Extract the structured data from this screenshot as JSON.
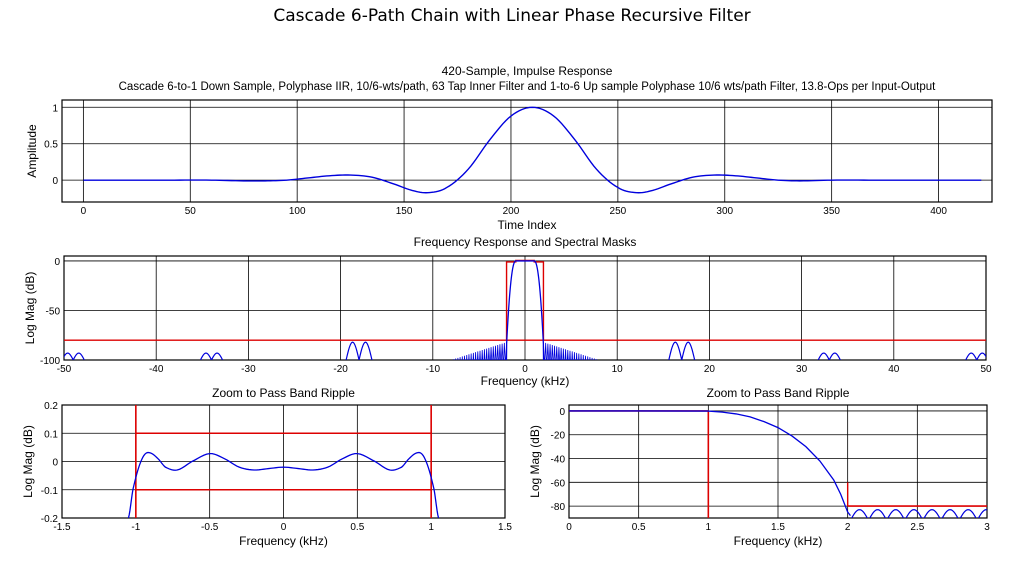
{
  "page": {
    "title": "Cascade 6-Path Chain with Linear Phase Recursive Filter"
  },
  "colors": {
    "curve": "#0000dd",
    "mask": "#dd0000",
    "grid": "#000000"
  },
  "chart_data": [
    {
      "id": "impulse",
      "type": "line",
      "title": "420-Sample, Impulse Response",
      "subtitle": "Cascade 6-to-1 Down Sample, Polyphase IIR, 10/6-wts/path, 63 Tap Inner Filter and 1-to-6 Up sample Polyphase 10/6 wts/path Filter, 13.8-Ops per Input-Output",
      "xlabel": "Time Index",
      "ylabel": "Amplitude",
      "xlim": [
        -10,
        425
      ],
      "ylim": [
        -0.3,
        1.1
      ],
      "xticks": [
        0,
        50,
        100,
        150,
        200,
        250,
        300,
        350,
        400
      ],
      "yticks": [
        0,
        0.5,
        1
      ],
      "grid": true,
      "series": [
        {
          "name": "impulse response",
          "x": [
            0,
            40,
            60,
            75,
            85,
            95,
            105,
            115,
            125,
            135,
            145,
            155,
            162,
            170,
            180,
            190,
            200,
            210,
            220,
            230,
            240,
            250,
            258,
            265,
            275,
            285,
            295,
            305,
            315,
            325,
            335,
            350,
            370,
            390,
            420
          ],
          "y": [
            0,
            0,
            0,
            -0.01,
            -0.01,
            0,
            0.03,
            0.06,
            0.07,
            0.04,
            -0.05,
            -0.15,
            -0.17,
            -0.1,
            0.15,
            0.55,
            0.88,
            1.0,
            0.88,
            0.55,
            0.15,
            -0.1,
            -0.17,
            -0.15,
            -0.05,
            0.04,
            0.07,
            0.06,
            0.03,
            0,
            -0.01,
            0,
            0,
            0,
            0
          ]
        }
      ]
    },
    {
      "id": "freq",
      "type": "line",
      "title": "Frequency Response and Spectral Masks",
      "xlabel": "Frequency (kHz)",
      "ylabel": "Log Mag (dB)",
      "xlim": [
        -50,
        50
      ],
      "ylim": [
        -100,
        5
      ],
      "xticks": [
        -50,
        -40,
        -30,
        -20,
        -10,
        0,
        10,
        20,
        30,
        40,
        50
      ],
      "yticks": [
        -100,
        -50,
        0
      ],
      "grid": true,
      "mask": {
        "passband_edge_khz": 1,
        "stopband_edge_khz": 2,
        "stopband_db": -80
      },
      "sidelobe_clusters_khz": [
        -49,
        -34,
        -18,
        17,
        33,
        49
      ]
    },
    {
      "id": "zoom_pass",
      "type": "line",
      "title": "Zoom to Pass Band Ripple",
      "xlabel": "Frequency (kHz)",
      "ylabel": "Log Mag (dB)",
      "xlim": [
        -1.5,
        1.5
      ],
      "ylim": [
        -0.2,
        0.2
      ],
      "xticks": [
        -1.5,
        -1,
        -0.5,
        0,
        0.5,
        1,
        1.5
      ],
      "yticks": [
        -0.2,
        -0.1,
        0,
        0.1,
        0.2
      ],
      "grid": true,
      "mask": {
        "upper_db": 0.1,
        "lower_db": -0.1,
        "edge_khz": 1
      },
      "series": [
        {
          "name": "passband ripple",
          "x": [
            -1.05,
            -1.02,
            -0.98,
            -0.94,
            -0.9,
            -0.85,
            -0.8,
            -0.72,
            -0.62,
            -0.5,
            -0.4,
            -0.3,
            -0.2,
            -0.1,
            0,
            0.1,
            0.2,
            0.3,
            0.4,
            0.5,
            0.62,
            0.72,
            0.8,
            0.85,
            0.9,
            0.94,
            0.98,
            1.02,
            1.05
          ],
          "y": [
            -0.2,
            -0.1,
            -0.02,
            0.025,
            0.03,
            0.01,
            -0.02,
            -0.03,
            0.0,
            0.028,
            0.01,
            -0.02,
            -0.03,
            -0.025,
            -0.02,
            -0.025,
            -0.03,
            -0.02,
            0.01,
            0.028,
            0.0,
            -0.03,
            -0.02,
            0.01,
            0.03,
            0.025,
            -0.02,
            -0.1,
            -0.2
          ]
        }
      ]
    },
    {
      "id": "zoom_trans",
      "type": "line",
      "title": "Zoom to Pass Band Ripple",
      "xlabel": "Frequency (kHz)",
      "ylabel": "Log Mag (dB)",
      "xlim": [
        0,
        3
      ],
      "ylim": [
        -90,
        5
      ],
      "xticks": [
        0,
        0.5,
        1,
        1.5,
        2,
        2.5,
        3
      ],
      "yticks": [
        -80,
        -60,
        -40,
        -20,
        0
      ],
      "grid": true,
      "mask": {
        "passband_edge_khz": 1,
        "stopband_edge_khz": 2,
        "stopband_db": -80
      },
      "series": [
        {
          "name": "transition band",
          "x": [
            0,
            0.5,
            1.0,
            1.1,
            1.2,
            1.3,
            1.4,
            1.5,
            1.6,
            1.7,
            1.8,
            1.9,
            1.95,
            2.0,
            2.02
          ],
          "y": [
            0,
            0,
            -0.1,
            -1,
            -2.5,
            -5,
            -9,
            -14,
            -21,
            -30,
            -42,
            -58,
            -70,
            -85,
            -88
          ]
        }
      ]
    }
  ]
}
